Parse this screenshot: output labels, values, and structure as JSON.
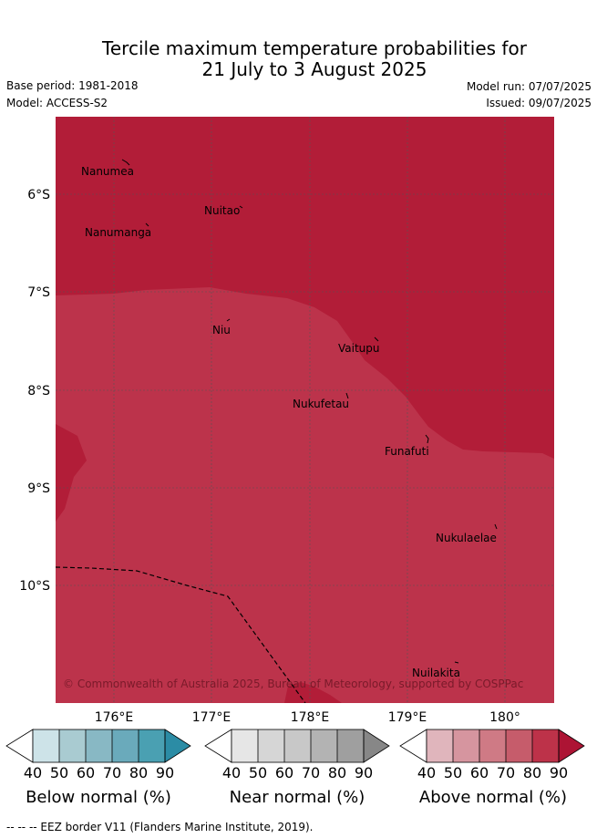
{
  "header": {
    "title_line1": "Tercile maximum temperature probabilities for",
    "title_line2": "21 July to 3 August 2025",
    "base_period": "Base period: 1981-2018",
    "model": "Model: ACCESS-S2",
    "model_run": "Model run: 07/07/2025",
    "issued": "Issued: 09/07/2025"
  },
  "map": {
    "lon_labels": [
      "176°E",
      "177°E",
      "178°E",
      "179°E",
      "180°"
    ],
    "lat_labels": [
      "6°S",
      "7°S",
      "8°S",
      "9°S",
      "10°S"
    ],
    "islands": [
      "Nanumea",
      "Nuitao",
      "Nanumanga",
      "Niu",
      "Vaitupu",
      "Nukufetau",
      "Funafuti",
      "Nukulaelae",
      "Nuilakita"
    ],
    "copyright": "© Commonwealth of Australia 2025, Bureau of Meteorology, supported by COSPPac",
    "colors": {
      "above_80_90": "#b21d38",
      "above_70_80": "#bc334b"
    }
  },
  "legend": {
    "values": [
      "40",
      "50",
      "60",
      "70",
      "80",
      "90"
    ],
    "below": {
      "caption": "Below normal (%)",
      "colors": [
        "#cde3e8",
        "#a9cbd1",
        "#88b8c4",
        "#6aaabb",
        "#4aa0b2",
        "#2b8ca5"
      ]
    },
    "near": {
      "caption": "Near normal (%)",
      "colors": [
        "#e6e6e6",
        "#d6d6d6",
        "#c8c8c8",
        "#b3b3b3",
        "#9f9f9f",
        "#878787"
      ]
    },
    "above": {
      "caption": "Above normal (%)",
      "colors": [
        "#e0b5bc",
        "#d6959f",
        "#cf7a85",
        "#c65c6b",
        "#bd3249",
        "#ad1434"
      ]
    }
  },
  "footer": {
    "eez_note": "-- -- -- EEZ border V11 (Flanders Marine Institute, 2019)."
  }
}
